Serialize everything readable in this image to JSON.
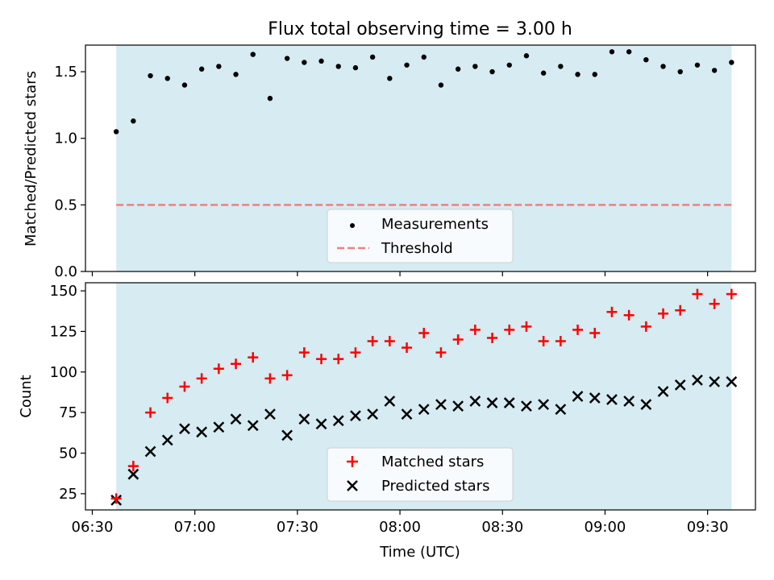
{
  "title": "Flux total observing time = 3.00 h",
  "chart_data": [
    {
      "type": "scatter",
      "ylabel": "Matched/Predicted stars",
      "ylim": [
        0,
        1.7
      ],
      "yticks": [
        0.0,
        0.5,
        1.0,
        1.5
      ],
      "ytick_labels": [
        "0.0",
        "0.5",
        "1.0",
        "1.5"
      ],
      "shaded_span": [
        "06:37",
        "09:37"
      ],
      "shade_color": "#add8e6",
      "threshold": 0.5,
      "x": [
        "06:37",
        "06:42",
        "06:47",
        "06:52",
        "06:57",
        "07:02",
        "07:07",
        "07:12",
        "07:17",
        "07:22",
        "07:27",
        "07:32",
        "07:37",
        "07:42",
        "07:47",
        "07:52",
        "07:57",
        "08:02",
        "08:07",
        "08:12",
        "08:17",
        "08:22",
        "08:27",
        "08:32",
        "08:37",
        "08:42",
        "08:47",
        "08:52",
        "08:57",
        "09:02",
        "09:07",
        "09:12",
        "09:17",
        "09:22",
        "09:27",
        "09:32",
        "09:37"
      ],
      "series": [
        {
          "name": "Measurements",
          "marker": "dot",
          "color": "#000000",
          "values": [
            1.05,
            1.13,
            1.47,
            1.45,
            1.4,
            1.52,
            1.54,
            1.48,
            1.63,
            1.3,
            1.6,
            1.57,
            1.58,
            1.54,
            1.53,
            1.61,
            1.45,
            1.55,
            1.61,
            1.4,
            1.52,
            1.54,
            1.5,
            1.55,
            1.62,
            1.49,
            1.54,
            1.48,
            1.48,
            1.65,
            1.65,
            1.59,
            1.54,
            1.5,
            1.55,
            1.51,
            1.57
          ]
        },
        {
          "name": "Threshold",
          "marker": "dashed-line",
          "color": "#f08080",
          "values": [
            0.5,
            0.5
          ]
        }
      ],
      "legend": [
        "Measurements",
        "Threshold"
      ],
      "legend_position": "lower center"
    },
    {
      "type": "scatter",
      "xlabel": "Time (UTC)",
      "ylabel": "Count",
      "ylim": [
        15,
        155
      ],
      "yticks": [
        25,
        50,
        75,
        100,
        125,
        150
      ],
      "ytick_labels": [
        "25",
        "50",
        "75",
        "100",
        "125",
        "150"
      ],
      "xtick_labels": [
        "06:30",
        "07:00",
        "07:30",
        "08:00",
        "08:30",
        "09:00",
        "09:30"
      ],
      "xlim": [
        "06:28",
        "09:44"
      ],
      "shaded_span": [
        "06:37",
        "09:37"
      ],
      "shade_color": "#add8e6",
      "x": [
        "06:37",
        "06:42",
        "06:47",
        "06:52",
        "06:57",
        "07:02",
        "07:07",
        "07:12",
        "07:17",
        "07:22",
        "07:27",
        "07:32",
        "07:37",
        "07:42",
        "07:47",
        "07:52",
        "07:57",
        "08:02",
        "08:07",
        "08:12",
        "08:17",
        "08:22",
        "08:27",
        "08:32",
        "08:37",
        "08:42",
        "08:47",
        "08:52",
        "08:57",
        "09:02",
        "09:07",
        "09:12",
        "09:17",
        "09:22",
        "09:27",
        "09:32",
        "09:37"
      ],
      "series": [
        {
          "name": "Matched stars",
          "marker": "plus",
          "color": "#ff0000",
          "values": [
            22,
            42,
            75,
            84,
            91,
            96,
            102,
            105,
            109,
            96,
            98,
            112,
            108,
            108,
            112,
            119,
            119,
            115,
            124,
            112,
            120,
            126,
            121,
            126,
            128,
            119,
            119,
            126,
            124,
            137,
            135,
            128,
            136,
            138,
            148,
            142,
            148
          ]
        },
        {
          "name": "Predicted stars",
          "marker": "x",
          "color": "#000000",
          "values": [
            21,
            37,
            51,
            58,
            65,
            63,
            66,
            71,
            67,
            74,
            61,
            71,
            68,
            70,
            73,
            74,
            82,
            74,
            77,
            80,
            79,
            82,
            81,
            81,
            79,
            80,
            77,
            85,
            84,
            83,
            82,
            80,
            88,
            92,
            95,
            94,
            94
          ]
        }
      ],
      "legend": [
        "Matched stars",
        "Predicted stars"
      ],
      "legend_position": "lower center"
    }
  ]
}
